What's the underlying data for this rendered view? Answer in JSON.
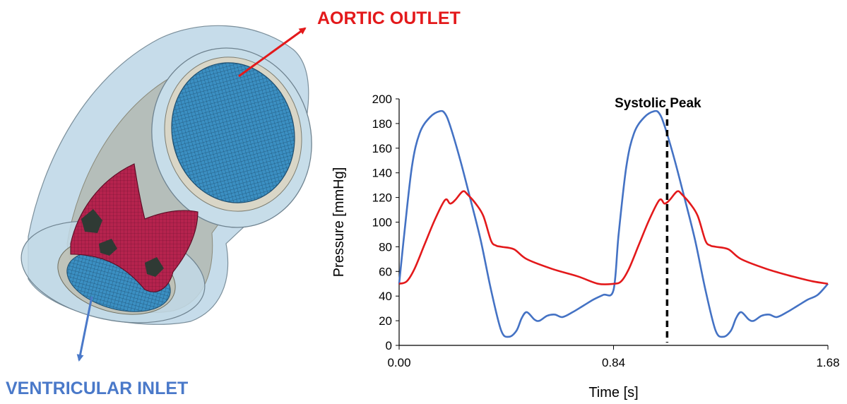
{
  "labels": {
    "aortic_outlet": "AORTIC OUTLET",
    "ventricular_inlet": "VENTRICULAR INLET",
    "systolic_peak": "Systolic Peak"
  },
  "colors": {
    "aortic_pressure": "#e3191b",
    "ventricular_pressure": "#4472c4",
    "aortic_label": "#e3191b",
    "ventricular_label": "#4a79c9",
    "mesh_blue": "#3b8fc2",
    "leaflet_red": "#b5234e",
    "housing": "#bcd6e6"
  },
  "chart_data": {
    "type": "line",
    "xlabel": "Time [s]",
    "ylabel": "Pressure [mmHg]",
    "xlim": [
      0,
      1.68
    ],
    "ylim": [
      0,
      200
    ],
    "x_ticks": [
      "0.00",
      "0.84",
      "1.68"
    ],
    "x_tick_values": [
      0,
      0.84,
      1.68
    ],
    "y_ticks": [
      "0",
      "20",
      "40",
      "60",
      "80",
      "100",
      "120",
      "140",
      "160",
      "180",
      "200"
    ],
    "y_tick_values": [
      0,
      20,
      40,
      60,
      80,
      100,
      120,
      140,
      160,
      180,
      200
    ],
    "grid": false,
    "annotation": {
      "x": 1.05,
      "label": "Systolic Peak",
      "style": "dashed-vertical"
    },
    "series": [
      {
        "key": "ventricular",
        "x": [
          0.0,
          0.02,
          0.05,
          0.08,
          0.12,
          0.16,
          0.18,
          0.2,
          0.24,
          0.28,
          0.32,
          0.36,
          0.4,
          0.43,
          0.46,
          0.48,
          0.5,
          0.53,
          0.55,
          0.58,
          0.61,
          0.64,
          0.68,
          0.72,
          0.76,
          0.8,
          0.84,
          0.86,
          0.89,
          0.92,
          0.96,
          1.0,
          1.02,
          1.04,
          1.08,
          1.12,
          1.16,
          1.2,
          1.24,
          1.27,
          1.3,
          1.32,
          1.34,
          1.37,
          1.39,
          1.42,
          1.45,
          1.48,
          1.52,
          1.56,
          1.6,
          1.64,
          1.68
        ],
        "y": [
          50,
          90,
          145,
          172,
          185,
          190,
          188,
          178,
          150,
          118,
          85,
          45,
          12,
          7,
          12,
          22,
          27,
          21,
          20,
          24,
          25,
          23,
          27,
          32,
          37,
          41,
          45,
          90,
          145,
          172,
          185,
          190,
          188,
          178,
          150,
          118,
          85,
          45,
          12,
          7,
          12,
          22,
          27,
          21,
          20,
          24,
          25,
          23,
          27,
          32,
          37,
          41,
          50
        ]
      },
      {
        "key": "aortic",
        "x": [
          0.0,
          0.03,
          0.06,
          0.1,
          0.14,
          0.18,
          0.2,
          0.22,
          0.25,
          0.27,
          0.3,
          0.33,
          0.36,
          0.38,
          0.4,
          0.45,
          0.5,
          0.6,
          0.7,
          0.78,
          0.84,
          0.87,
          0.9,
          0.94,
          0.98,
          1.02,
          1.04,
          1.06,
          1.09,
          1.11,
          1.14,
          1.17,
          1.2,
          1.22,
          1.24,
          1.29,
          1.34,
          1.44,
          1.54,
          1.62,
          1.68
        ],
        "y": [
          50,
          52,
          62,
          82,
          102,
          118,
          115,
          118,
          125,
          122,
          115,
          105,
          85,
          81,
          80,
          78,
          70,
          62,
          56,
          50,
          50,
          52,
          62,
          82,
          102,
          118,
          115,
          118,
          125,
          122,
          115,
          105,
          85,
          81,
          80,
          78,
          70,
          62,
          56,
          52,
          50
        ]
      }
    ]
  }
}
